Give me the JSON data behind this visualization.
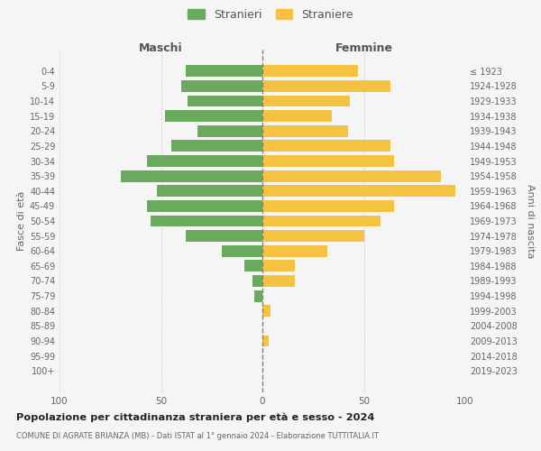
{
  "age_groups": [
    "0-4",
    "5-9",
    "10-14",
    "15-19",
    "20-24",
    "25-29",
    "30-34",
    "35-39",
    "40-44",
    "45-49",
    "50-54",
    "55-59",
    "60-64",
    "65-69",
    "70-74",
    "75-79",
    "80-84",
    "85-89",
    "90-94",
    "95-99",
    "100+"
  ],
  "birth_years": [
    "2019-2023",
    "2014-2018",
    "2009-2013",
    "2004-2008",
    "1999-2003",
    "1994-1998",
    "1989-1993",
    "1984-1988",
    "1979-1983",
    "1974-1978",
    "1969-1973",
    "1964-1968",
    "1959-1963",
    "1954-1958",
    "1949-1953",
    "1944-1948",
    "1939-1943",
    "1934-1938",
    "1929-1933",
    "1924-1928",
    "≤ 1923"
  ],
  "maschi": [
    38,
    40,
    37,
    48,
    32,
    45,
    57,
    70,
    52,
    57,
    55,
    38,
    20,
    9,
    5,
    4,
    0,
    0,
    0,
    0,
    0
  ],
  "femmine": [
    47,
    63,
    43,
    34,
    42,
    63,
    65,
    88,
    95,
    65,
    58,
    50,
    32,
    16,
    16,
    0,
    4,
    0,
    3,
    0,
    0
  ],
  "color_maschi": "#6aaa5e",
  "color_femmine": "#f5c242",
  "title_main": "Popolazione per cittadinanza straniera per età e sesso - 2024",
  "title_sub": "COMUNE DI AGRATE BRIANZA (MB) - Dati ISTAT al 1° gennaio 2024 - Elaborazione TUTTITALIA.IT",
  "legend_maschi": "Stranieri",
  "legend_femmine": "Straniere",
  "xlabel_left": "Maschi",
  "xlabel_right": "Femmine",
  "ylabel_left": "Fasce di età",
  "ylabel_right": "Anni di nascita",
  "xlim": 100,
  "background_color": "#f5f5f5"
}
